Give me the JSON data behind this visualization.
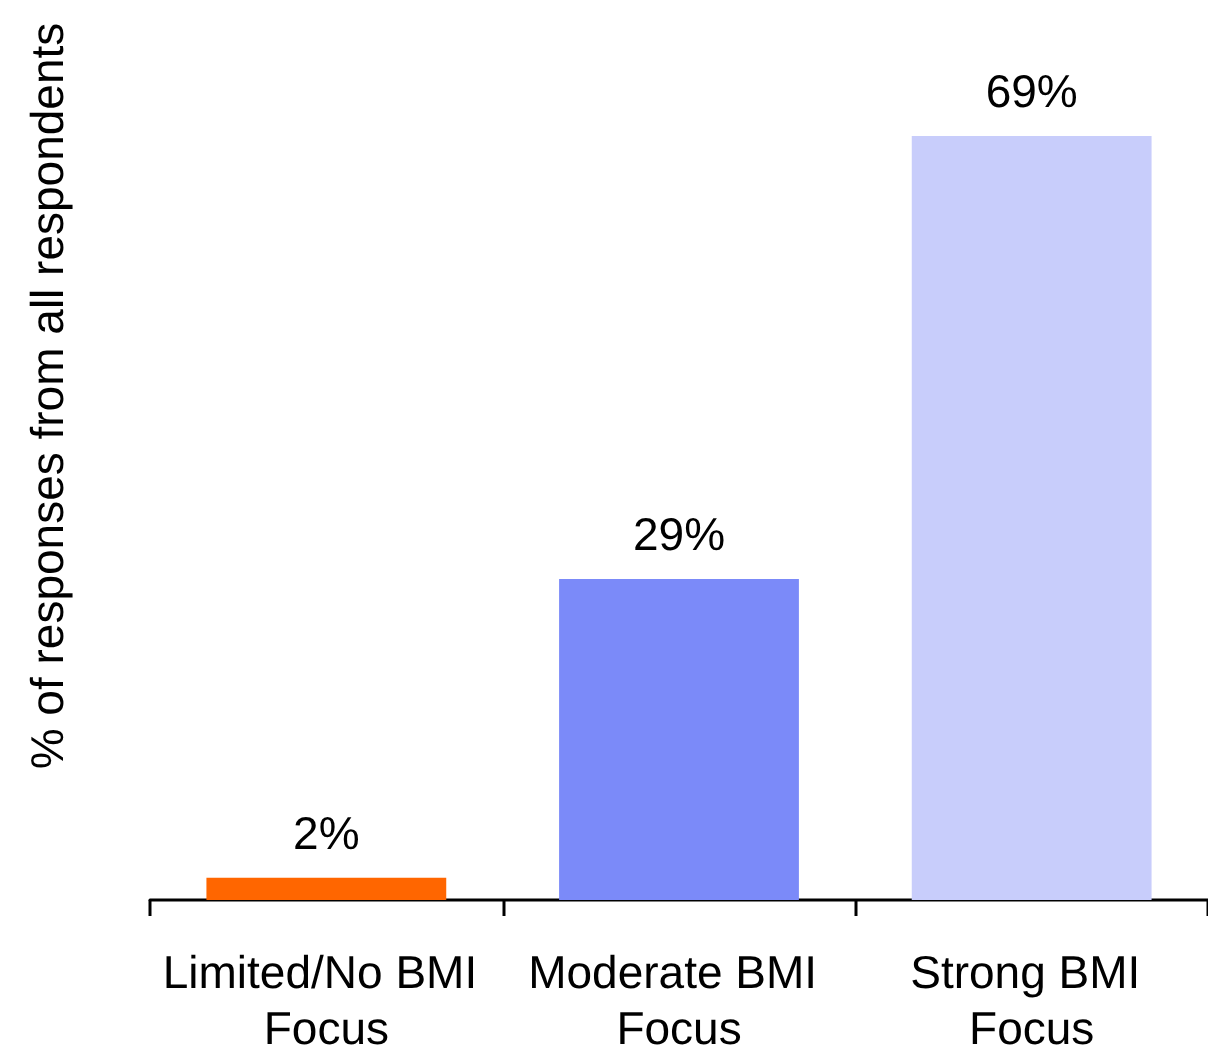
{
  "chart_data": {
    "type": "bar",
    "ylabel": "% of responses from all respondents",
    "categories": [
      "Limited/No BMI Focus",
      "Moderate BMI Focus",
      "Strong BMI Focus"
    ],
    "values": [
      2,
      29,
      69
    ],
    "colors": [
      "#ff6600",
      "#7b8af9",
      "#c8cdfb"
    ],
    "value_labels": [
      "2%",
      "29%",
      "69%"
    ]
  }
}
